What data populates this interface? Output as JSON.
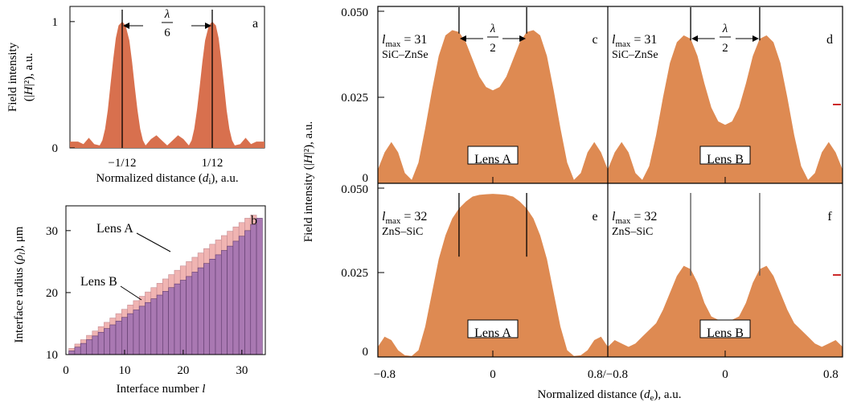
{
  "colors": {
    "orange": "#de8a52",
    "red_orange": "#d8704e",
    "pink": "#f0b4b2",
    "purple": "#a978b2",
    "line": "#000000",
    "marker": "#cc2a2a"
  },
  "chart_data": [
    {
      "id": "a",
      "type": "area",
      "panel_label": "a",
      "xlabel_prefix": "Normalized distance (",
      "xlabel_var": "d",
      "xlabel_sub": "i",
      "xlabel_suffix": "), a.u.",
      "ylabel_line1": "Field intensity",
      "ylabel_line2_pre": "(|",
      "ylabel_line2_var": "H",
      "ylabel_line2_post": "|²), a.u.",
      "xticks": [
        {
          "x": -0.0833,
          "label": "−1/12"
        },
        {
          "x": 0.0833,
          "label": "1/12"
        }
      ],
      "yticks": [
        {
          "y": 0,
          "label": "0"
        },
        {
          "y": 1,
          "label": "1"
        }
      ],
      "xlim": [
        -0.18,
        0.18
      ],
      "ylim": [
        0,
        1.12
      ],
      "vlines": [
        -0.0833,
        0.0833
      ],
      "annotation_top": "λ",
      "annotation_bottom": "6",
      "series": [
        {
          "x": [
            -0.18,
            -0.165,
            -0.155,
            -0.145,
            -0.135,
            -0.125,
            -0.12,
            -0.115,
            -0.11,
            -0.105,
            -0.1,
            -0.095,
            -0.09,
            -0.0833,
            -0.077,
            -0.07,
            -0.065,
            -0.06,
            -0.055,
            -0.05,
            -0.045,
            -0.04,
            -0.03,
            -0.02,
            -0.01,
            0,
            0.01,
            0.02,
            0.03,
            0.04,
            0.045,
            0.05,
            0.055,
            0.06,
            0.065,
            0.07,
            0.077,
            0.0833,
            0.09,
            0.095,
            0.1,
            0.105,
            0.11,
            0.115,
            0.12,
            0.125,
            0.135,
            0.145,
            0.155,
            0.165,
            0.18
          ],
          "y": [
            0.05,
            0.05,
            0.03,
            0.08,
            0.03,
            0.02,
            0.06,
            0.15,
            0.3,
            0.5,
            0.7,
            0.87,
            0.97,
            1.0,
            0.97,
            0.85,
            0.68,
            0.48,
            0.3,
            0.15,
            0.06,
            0.02,
            0.07,
            0.1,
            0.06,
            0.02,
            0.06,
            0.1,
            0.07,
            0.02,
            0.06,
            0.15,
            0.3,
            0.48,
            0.68,
            0.85,
            0.97,
            1.0,
            0.97,
            0.87,
            0.7,
            0.5,
            0.3,
            0.15,
            0.06,
            0.02,
            0.03,
            0.08,
            0.03,
            0.05,
            0.05
          ]
        }
      ]
    },
    {
      "id": "b",
      "type": "bar",
      "panel_label": "b",
      "xlabel": "Interface number",
      "xlabel_var": "l",
      "ylabel_pre": "Interface radius (",
      "ylabel_var": "ρ",
      "ylabel_sub": "l",
      "ylabel_post": "), μm",
      "xticks": [
        0,
        10,
        20,
        30
      ],
      "yticks": [
        10,
        20,
        30
      ],
      "xlim": [
        0,
        34
      ],
      "ylim": [
        10,
        34
      ],
      "series": [
        {
          "name": "Lens A",
          "values": [
            11.0,
            11.7,
            12.4,
            13.1,
            13.8,
            14.5,
            15.2,
            15.9,
            16.6,
            17.3,
            18.0,
            18.7,
            19.4,
            20.1,
            20.8,
            21.5,
            22.2,
            22.9,
            23.6,
            24.3,
            25.0,
            25.7,
            26.4,
            27.1,
            27.8,
            28.5,
            29.2,
            29.9,
            30.6,
            31.3,
            32.0,
            32.5
          ]
        },
        {
          "name": "Lens B",
          "values": [
            10.6,
            11.2,
            11.8,
            12.4,
            13.0,
            13.6,
            14.2,
            14.8,
            15.4,
            16.0,
            16.6,
            17.2,
            17.8,
            18.4,
            19.0,
            19.6,
            20.2,
            20.8,
            21.4,
            22.0,
            22.6,
            23.3,
            24.0,
            24.7,
            25.4,
            26.1,
            26.8,
            27.5,
            28.3,
            29.1,
            30.0,
            31.0,
            32.0
          ]
        }
      ]
    },
    {
      "id": "cdef",
      "type": "area",
      "ylabel_pre": "Field intensity (|",
      "ylabel_var": "H",
      "ylabel_post": "|²), a.u.",
      "xlabel_prefix": "Normalized distance (",
      "xlabel_var": "d",
      "xlabel_sub": "e",
      "xlabel_suffix": "), a.u.",
      "yticks": [
        {
          "y": 0,
          "label": "0"
        },
        {
          "y": 0.025,
          "label": "0.025"
        },
        {
          "y": 0.05,
          "label": "0.050"
        }
      ],
      "xticks_left": [
        {
          "x": -0.8,
          "label": "−0.8"
        },
        {
          "x": 0,
          "label": "0"
        }
      ],
      "xtick_shared": "0.8/−0.8",
      "xticks_right": [
        {
          "x": 0,
          "label": "0"
        },
        {
          "x": 0.8,
          "label": "0.8"
        }
      ],
      "xlim": [
        -0.85,
        0.85
      ],
      "ylim": [
        0,
        0.05
      ],
      "panels": [
        {
          "label": "c",
          "lmax_pre": "l",
          "lmax_sub": "max",
          "lmax_val": " = 31",
          "material": "SiC–ZnSe",
          "lens": "Lens A",
          "vlines": [
            -0.25,
            0.25
          ],
          "annotation_top": "λ",
          "annotation_bottom": "2",
          "x": [
            -0.85,
            -0.8,
            -0.75,
            -0.7,
            -0.65,
            -0.6,
            -0.55,
            -0.5,
            -0.45,
            -0.4,
            -0.35,
            -0.3,
            -0.25,
            -0.2,
            -0.15,
            -0.1,
            -0.05,
            0,
            0.05,
            0.1,
            0.15,
            0.2,
            0.25,
            0.3,
            0.35,
            0.4,
            0.45,
            0.5,
            0.55,
            0.6,
            0.65,
            0.7,
            0.75,
            0.8,
            0.85
          ],
          "y": [
            0.004,
            0.009,
            0.012,
            0.009,
            0.003,
            0.001,
            0.006,
            0.016,
            0.027,
            0.037,
            0.043,
            0.0445,
            0.044,
            0.041,
            0.036,
            0.031,
            0.028,
            0.027,
            0.028,
            0.031,
            0.036,
            0.041,
            0.044,
            0.0445,
            0.043,
            0.037,
            0.027,
            0.016,
            0.006,
            0.001,
            0.003,
            0.009,
            0.012,
            0.009,
            0.004
          ]
        },
        {
          "label": "d",
          "lmax_pre": "l",
          "lmax_sub": "max",
          "lmax_val": " = 31",
          "material": "SiC–ZnSe",
          "lens": "Lens B",
          "vlines": [
            -0.25,
            0.25
          ],
          "annotation_top": "λ",
          "annotation_bottom": "2",
          "x": [
            -0.85,
            -0.8,
            -0.75,
            -0.7,
            -0.65,
            -0.6,
            -0.55,
            -0.5,
            -0.45,
            -0.4,
            -0.35,
            -0.3,
            -0.25,
            -0.2,
            -0.15,
            -0.1,
            -0.05,
            0,
            0.05,
            0.1,
            0.15,
            0.2,
            0.25,
            0.3,
            0.35,
            0.4,
            0.45,
            0.5,
            0.55,
            0.6,
            0.65,
            0.7,
            0.75,
            0.8,
            0.85
          ],
          "y": [
            0.004,
            0.009,
            0.012,
            0.009,
            0.003,
            0.001,
            0.005,
            0.014,
            0.025,
            0.035,
            0.041,
            0.043,
            0.042,
            0.037,
            0.029,
            0.022,
            0.018,
            0.017,
            0.018,
            0.022,
            0.029,
            0.037,
            0.042,
            0.043,
            0.041,
            0.035,
            0.025,
            0.014,
            0.005,
            0.001,
            0.003,
            0.009,
            0.012,
            0.009,
            0.004
          ]
        },
        {
          "label": "e",
          "lmax_pre": "l",
          "lmax_sub": "max",
          "lmax_val": " = 32",
          "material": "ZnS–SiC",
          "lens": "Lens A",
          "vlines": [
            -0.25,
            0.25
          ],
          "x": [
            -0.85,
            -0.8,
            -0.75,
            -0.7,
            -0.65,
            -0.6,
            -0.55,
            -0.5,
            -0.45,
            -0.4,
            -0.35,
            -0.3,
            -0.25,
            -0.2,
            -0.15,
            -0.1,
            -0.05,
            0,
            0.05,
            0.1,
            0.15,
            0.2,
            0.25,
            0.3,
            0.35,
            0.4,
            0.45,
            0.5,
            0.55,
            0.6,
            0.65,
            0.7,
            0.75,
            0.8,
            0.85
          ],
          "y": [
            0.003,
            0.006,
            0.005,
            0.002,
            0.0005,
            0.0003,
            0.002,
            0.009,
            0.019,
            0.029,
            0.036,
            0.041,
            0.044,
            0.046,
            0.0475,
            0.048,
            0.0482,
            0.0483,
            0.0482,
            0.048,
            0.0475,
            0.046,
            0.044,
            0.041,
            0.036,
            0.029,
            0.019,
            0.009,
            0.002,
            0.0003,
            0.0005,
            0.002,
            0.005,
            0.006,
            0.003
          ]
        },
        {
          "label": "f",
          "lmax_pre": "l",
          "lmax_sub": "max",
          "lmax_val": " = 32",
          "material": "ZnS–SiC",
          "lens": "Lens B",
          "vlines": [
            -0.25,
            0.25
          ],
          "x": [
            -0.85,
            -0.8,
            -0.75,
            -0.7,
            -0.65,
            -0.6,
            -0.55,
            -0.5,
            -0.45,
            -0.4,
            -0.35,
            -0.3,
            -0.25,
            -0.2,
            -0.15,
            -0.1,
            -0.05,
            0,
            0.05,
            0.1,
            0.15,
            0.2,
            0.25,
            0.3,
            0.35,
            0.4,
            0.45,
            0.5,
            0.55,
            0.6,
            0.65,
            0.7,
            0.75,
            0.8,
            0.85
          ],
          "y": [
            0.003,
            0.005,
            0.004,
            0.003,
            0.004,
            0.006,
            0.008,
            0.01,
            0.014,
            0.019,
            0.024,
            0.027,
            0.026,
            0.022,
            0.016,
            0.012,
            0.011,
            0.0105,
            0.011,
            0.012,
            0.016,
            0.022,
            0.026,
            0.027,
            0.024,
            0.019,
            0.014,
            0.01,
            0.008,
            0.006,
            0.004,
            0.003,
            0.004,
            0.005,
            0.003
          ]
        }
      ]
    }
  ]
}
